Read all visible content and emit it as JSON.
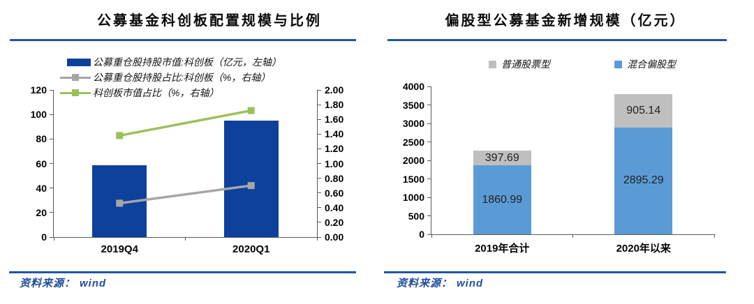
{
  "colors": {
    "accent_rule": "#2155A3",
    "source_text": "#1F4E9E",
    "axis_line": "#595959",
    "navy_bar": "#0D419C",
    "gray_line": "#A6A6A6",
    "green_line": "#9BC05A",
    "stack_blue": "#5B9BD5",
    "stack_gray": "#BFBFBF"
  },
  "chart_data": [
    {
      "type": "bar",
      "subtype": "combo-bar-line-dual-axis",
      "title": "公募基金科创板配置规模与比例",
      "categories": [
        "2019Q4",
        "2020Q1"
      ],
      "left_axis": {
        "min": 0,
        "max": 120,
        "ticks": [
          "0",
          "20",
          "40",
          "60",
          "80",
          "100",
          "120"
        ]
      },
      "right_axis": {
        "min": 0,
        "max": 2,
        "ticks": [
          "0.00",
          "0.20",
          "0.40",
          "0.60",
          "0.80",
          "1.00",
          "1.20",
          "1.40",
          "1.60",
          "1.80",
          "2.00"
        ]
      },
      "grid": false,
      "legend_position": "top-left",
      "series": [
        {
          "name": "公募重仓股持股市值:科创板（亿元，左轴）",
          "type": "bar",
          "axis": "left",
          "color": "#0D419C",
          "values": [
            58.3,
            95.1
          ]
        },
        {
          "name": "公募重仓股持股占比:科创板（%，右轴）",
          "type": "line",
          "axis": "right",
          "color": "#A6A6A6",
          "values": [
            0.46,
            0.7
          ]
        },
        {
          "name": "科创板市值占比（%，右轴）",
          "type": "line",
          "axis": "right",
          "color": "#9BC05A",
          "values": [
            1.38,
            1.72
          ]
        }
      ],
      "source_prefix": "资料来源：",
      "source_name": "wind"
    },
    {
      "type": "bar",
      "subtype": "stacked-bar",
      "title": "偏股型公募基金新增规模（亿元）",
      "categories": [
        "2019年合计",
        "2020年以来"
      ],
      "y_axis": {
        "min": 0,
        "max": 4000,
        "ticks": [
          "0",
          "500",
          "1000",
          "1500",
          "2000",
          "2500",
          "3000",
          "3500",
          "4000"
        ]
      },
      "grid": false,
      "legend_position": "top-center",
      "series": [
        {
          "name": "混合偏股型",
          "color": "#5B9BD5",
          "values": [
            1860.99,
            2895.29
          ],
          "labels": [
            "1860.99",
            "2895.29"
          ]
        },
        {
          "name": "普通股票型",
          "color": "#BFBFBF",
          "values": [
            397.69,
            905.14
          ],
          "labels": [
            "397.69",
            "905.14"
          ]
        }
      ],
      "totals": [
        2258.68,
        3800.43
      ],
      "source_prefix": "资料来源：",
      "source_name": "wind"
    }
  ]
}
